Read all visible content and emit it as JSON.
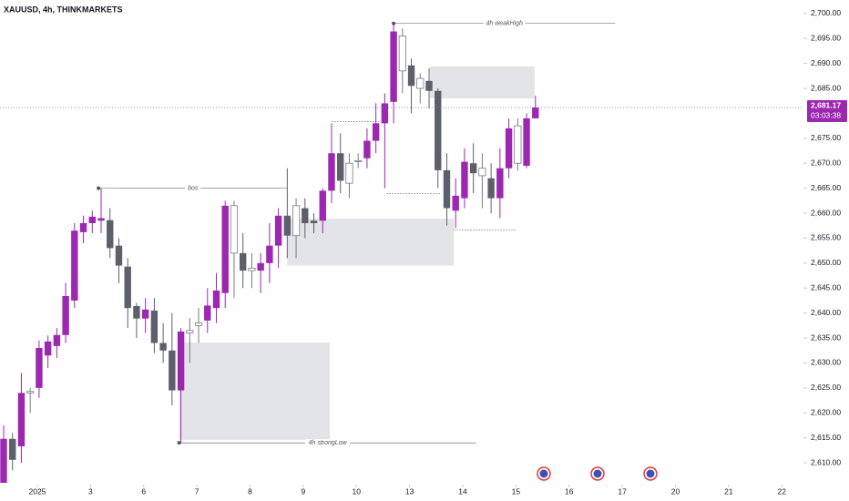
{
  "chart_data": {
    "type": "candlestick",
    "title": "XAUUSD, 4h, THINKMARKETS",
    "open": [
      2606,
      2614.8,
      2613.3,
      2624,
      2625,
      2631.5,
      2633.4,
      2635.6,
      2642.5,
      2656.2,
      2658,
      2658.5,
      2658.6,
      2653.5,
      2649.3,
      2641.4,
      2638.9,
      2640.5,
      2634,
      2632.5,
      2624.5,
      2636,
      2637.5,
      2638.5,
      2641,
      2644,
      2652,
      2652,
      2648.5,
      2648.5,
      2650,
      2653.5,
      2659.5,
      2655.5,
      2661,
      2658.5,
      2658.5,
      2664.5,
      2672,
      2666,
      2670.5,
      2671,
      2674.5,
      2678,
      2682.3,
      2688.5,
      2689.6,
      2685,
      2686.5,
      2684.5,
      2668.6,
      2660.5,
      2663,
      2670,
      2667.5,
      2667,
      2663,
      2669,
      2670,
      2669.5,
      2679
    ],
    "high": [
      2617.5,
      2616,
      2628,
      2625,
      2634.5,
      2635.5,
      2637,
      2646,
      2658,
      2659.5,
      2660.5,
      2665,
      2661,
      2655,
      2651,
      2642,
      2643,
      2643,
      2638,
      2640,
      2637,
      2639,
      2641,
      2645,
      2648,
      2662.5,
      2662.5,
      2656,
      2652,
      2652,
      2658,
      2661,
      2669,
      2663,
      2663,
      2660,
      2665,
      2678,
      2676,
      2672,
      2672,
      2677,
      2682,
      2684,
      2698,
      2697,
      2691,
      2688,
      2689,
      2685,
      2672,
      2667,
      2673,
      2674,
      2672,
      2670,
      2673,
      2679,
      2679,
      2680,
      2683.5
    ],
    "low": [
      2606,
      2608.5,
      2610,
      2620,
      2623,
      2629,
      2631,
      2634,
      2641,
      2654,
      2656,
      2656,
      2651,
      2646,
      2637,
      2635,
      2636,
      2632,
      2630,
      2621.5,
      2614,
      2630,
      2634,
      2636,
      2638,
      2641,
      2643,
      2645,
      2645,
      2644,
      2646,
      2649,
      2651,
      2651,
      2655,
      2656,
      2656,
      2662,
      2664,
      2663,
      2669,
      2669,
      2672,
      2665,
      2678,
      2684,
      2680,
      2682,
      2681,
      2665,
      2657.5,
      2657,
      2661,
      2664,
      2661,
      2660,
      2659,
      2667,
      2668.5,
      2669,
      2679
    ],
    "close": [
      2614.8,
      2610.6,
      2624,
      2624.3,
      2633,
      2634.3,
      2635.6,
      2643.4,
      2656.5,
      2658,
      2659.3,
      2659,
      2653,
      2649.5,
      2641,
      2638.9,
      2640.7,
      2634,
      2632.5,
      2624.5,
      2636.3,
      2636.5,
      2638,
      2641.5,
      2644.5,
      2661.5,
      2661.5,
      2648.5,
      2649,
      2650,
      2653.5,
      2659.5,
      2655.5,
      2661.5,
      2658,
      2658,
      2664.5,
      2672,
      2666.5,
      2670,
      2670.5,
      2674.5,
      2678,
      2682,
      2696.4,
      2695.5,
      2685.5,
      2687,
      2684.5,
      2668.6,
      2661,
      2663.5,
      2670.3,
      2668,
      2669,
      2663,
      2669,
      2677,
      2677.5,
      2679,
      2681.17
    ],
    "colors": [
      "#9c27b0",
      "#5d606b",
      "#9c27b0",
      "#ffffff",
      "#9c27b0",
      "#9c27b0",
      "#9c27b0",
      "#9c27b0",
      "#9c27b0",
      "#9c27b0",
      "#9c27b0",
      "#9c27b0",
      "#5d606b",
      "#5d606b",
      "#5d606b",
      "#5d606b",
      "#9c27b0",
      "#5d606b",
      "#5d606b",
      "#5d606b",
      "#9c27b0",
      "#ffffff",
      "#ffffff",
      "#9c27b0",
      "#9c27b0",
      "#9c27b0",
      "#ffffff",
      "#5d606b",
      "#ffffff",
      "#9c27b0",
      "#9c27b0",
      "#9c27b0",
      "#5d606b",
      "#ffffff",
      "#5d606b",
      "#5d606b",
      "#9c27b0",
      "#9c27b0",
      "#5d606b",
      "#ffffff",
      "#ffffff",
      "#9c27b0",
      "#9c27b0",
      "#9c27b0",
      "#9c27b0",
      "#ffffff",
      "#5d606b",
      "#ffffff",
      "#5d606b",
      "#5d606b",
      "#5d606b",
      "#9c27b0",
      "#9c27b0",
      "#5d606b",
      "#ffffff",
      "#5d606b",
      "#9c27b0",
      "#9c27b0",
      "#ffffff",
      "#9c27b0",
      "#9c27b0"
    ],
    "wick_color": "#787b86",
    "xlim": [
      -0.41,
      90.24
    ],
    "xticks": [
      {
        "value": 3.8,
        "label": "2025"
      },
      {
        "value": 9.8,
        "label": "3"
      },
      {
        "value": 15.8,
        "label": "6"
      },
      {
        "value": 21.8,
        "label": "7"
      },
      {
        "value": 27.8,
        "label": "8"
      },
      {
        "value": 33.8,
        "label": "9"
      },
      {
        "value": 39.8,
        "label": "10"
      },
      {
        "value": 45.8,
        "label": "13"
      },
      {
        "value": 51.8,
        "label": "14"
      },
      {
        "value": 57.8,
        "label": "15"
      },
      {
        "value": 63.8,
        "label": "16"
      },
      {
        "value": 69.8,
        "label": "17"
      },
      {
        "value": 75.8,
        "label": "20"
      },
      {
        "value": 81.8,
        "label": "21"
      },
      {
        "value": 87.8,
        "label": "22"
      }
    ],
    "ylim": [
      2606,
      2702.7
    ],
    "yticks": [
      {
        "value": 2610,
        "label": "2,610.00"
      },
      {
        "value": 2615,
        "label": "2,615.00"
      },
      {
        "value": 2620,
        "label": "2,620.00"
      },
      {
        "value": 2625,
        "label": "2,625.00"
      },
      {
        "value": 2630,
        "label": "2,630.00"
      },
      {
        "value": 2635,
        "label": "2,635.00"
      },
      {
        "value": 2640,
        "label": "2,640.00"
      },
      {
        "value": 2645,
        "label": "2,645.00"
      },
      {
        "value": 2650,
        "label": "2,650.00"
      },
      {
        "value": 2655,
        "label": "2,655.00"
      },
      {
        "value": 2660,
        "label": "2,660.00"
      },
      {
        "value": 2665,
        "label": "2,665.00"
      },
      {
        "value": 2670,
        "label": "2,670.00"
      },
      {
        "value": 2675,
        "label": "2,675.00"
      },
      {
        "value": 2685,
        "label": "2,685.00"
      },
      {
        "value": 2690,
        "label": "2,690.00"
      },
      {
        "value": 2695,
        "label": "2,695.00"
      },
      {
        "value": 2700,
        "label": "2,700.00"
      }
    ],
    "zones": [
      {
        "x": [
          19.8,
          36.8
        ],
        "y": [
          2614.6,
          2634.1
        ]
      },
      {
        "x": [
          32,
          50.8
        ],
        "y": [
          2649.5,
          2658.9
        ]
      },
      {
        "x": [
          48.1,
          59.9
        ],
        "y": [
          2683,
          2689.4
        ]
      }
    ],
    "lines": [
      {
        "label": "4h weakHigh",
        "value": 2698,
        "x": [
          44,
          69
        ]
      },
      {
        "label": "bos",
        "value": 2665,
        "x": [
          10.7,
          32
        ]
      },
      {
        "label": "4h strongLow",
        "value": 2614,
        "x": [
          19.8,
          53.3
        ]
      },
      {
        "value": 2678.3,
        "x": [
          37,
          42.5
        ],
        "dotted": true
      },
      {
        "value": 2663.9,
        "x": [
          43.2,
          49.3
        ],
        "dotted": true
      },
      {
        "value": 2656.6,
        "x": [
          50.8,
          57.9
        ],
        "dotted": true
      }
    ],
    "last_price": {
      "value": 2681.17,
      "label": "2,681.17"
    },
    "countdown": "03:03:38",
    "last_color": "#9c27b0",
    "price_line_color": "#5b6bd6"
  }
}
